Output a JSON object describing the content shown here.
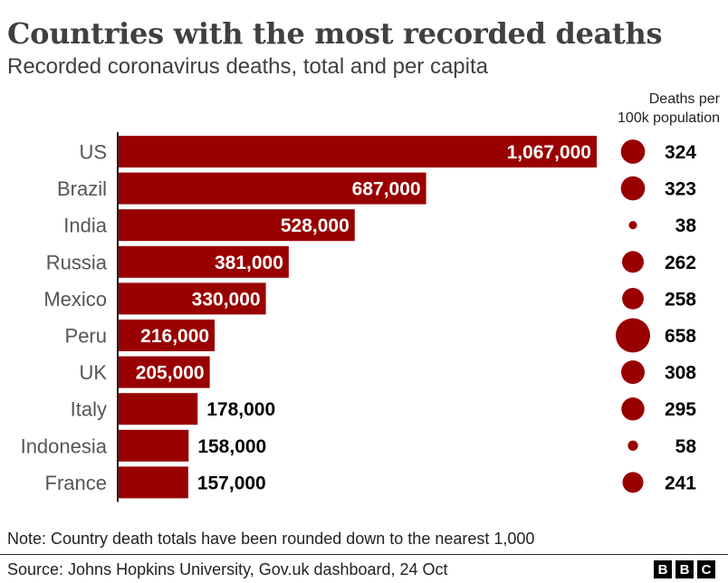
{
  "header": {
    "title": "Countries with the most recorded deaths",
    "subtitle": "Recorded coronavirus deaths, total and per capita",
    "per_capita_line1": "Deaths per",
    "per_capita_line2": "100k population"
  },
  "footer": {
    "note": "Note: Country death totals have been rounded down to the nearest 1,000",
    "source": "Source: Johns Hopkins University, Gov.uk dashboard, 24 Oct",
    "logo_letters": [
      "B",
      "B",
      "C"
    ]
  },
  "colors": {
    "bar": "#990000",
    "circle": "#990000",
    "axis": "#222222"
  },
  "chart_data": {
    "type": "bar",
    "orientation": "horizontal",
    "categories": [
      "US",
      "Brazil",
      "India",
      "Russia",
      "Mexico",
      "Peru",
      "UK",
      "Italy",
      "Indonesia",
      "France"
    ],
    "series": [
      {
        "values": [
          1067000,
          687000,
          528000,
          381000,
          330000,
          216000,
          205000,
          178000,
          158000,
          157000
        ],
        "labels": [
          "1,067,000",
          "687,000",
          "528,000",
          "381,000",
          "330,000",
          "216,000",
          "205,000",
          "178,000",
          "158,000",
          "157,000"
        ]
      },
      {
        "name": "Deaths per 100k population",
        "values": [
          324,
          323,
          38,
          262,
          258,
          658,
          308,
          295,
          58,
          241
        ],
        "labels": [
          "324",
          "323",
          "38",
          "262",
          "258",
          "658",
          "308",
          "295",
          "58",
          "241"
        ],
        "encoding": "circle-area"
      }
    ],
    "xlim": [
      0,
      1067000
    ],
    "grid": false,
    "legend": "none"
  }
}
